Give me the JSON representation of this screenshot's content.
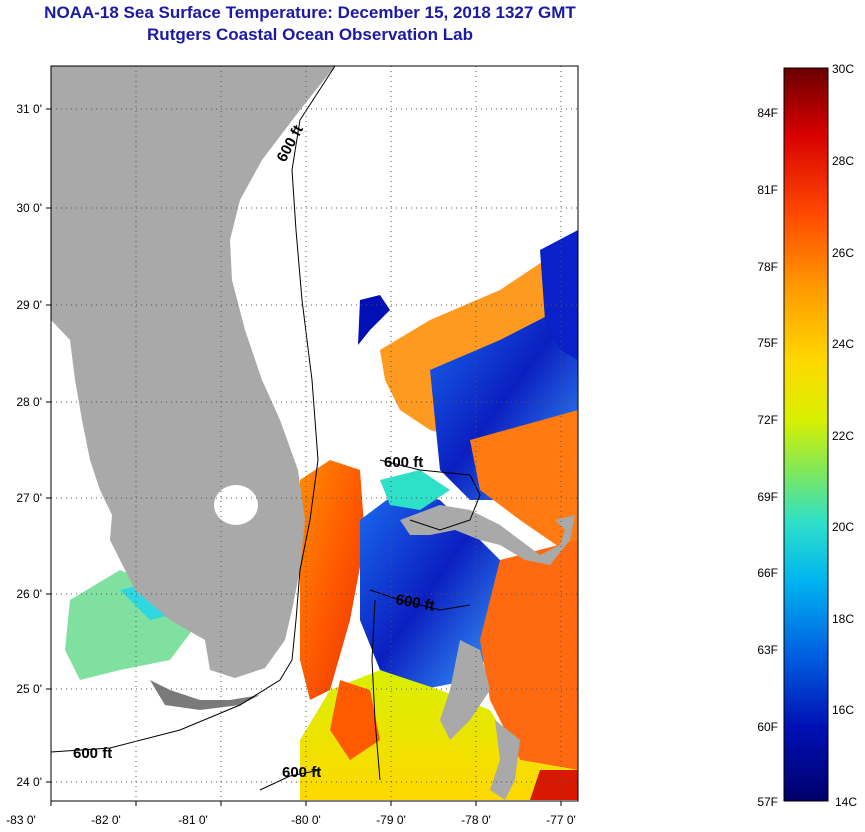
{
  "header": {
    "title": "NOAA-18 Sea Surface Temperature:  December 15, 2018 1327 GMT",
    "subtitle": "Rutgers Coastal Ocean Observation Lab"
  },
  "map": {
    "lat_labels": [
      "31 0'",
      "30 0'",
      "29 0'",
      "28 0'",
      "27 0'",
      "26 0'",
      "25 0'",
      "24 0'"
    ],
    "lon_labels": [
      "-83 0'",
      "-82 0'",
      "-81 0'",
      "-80 0'",
      "-79 0'",
      "-78 0'",
      "-77 0'"
    ],
    "contour_label": "600 ft",
    "contour_labels": [
      "600 ft",
      "600 ft",
      "600 ft",
      "600 ft",
      "600 ft"
    ]
  },
  "colorbar": {
    "celsius": [
      "30C",
      "28C",
      "26C",
      "24C",
      "22C",
      "20C",
      "18C",
      "16C",
      "14C"
    ],
    "fahrenheit": [
      "84F",
      "81F",
      "78F",
      "75F",
      "72F",
      "69F",
      "66F",
      "63F",
      "60F",
      "57F"
    ],
    "colors": [
      "#6a0000",
      "#d80000",
      "#ff4a00",
      "#ff9a00",
      "#ffd800",
      "#d8f000",
      "#7fe85a",
      "#2ee0c8",
      "#00b4f0",
      "#0060e0",
      "#0010b4",
      "#00006a"
    ]
  }
}
